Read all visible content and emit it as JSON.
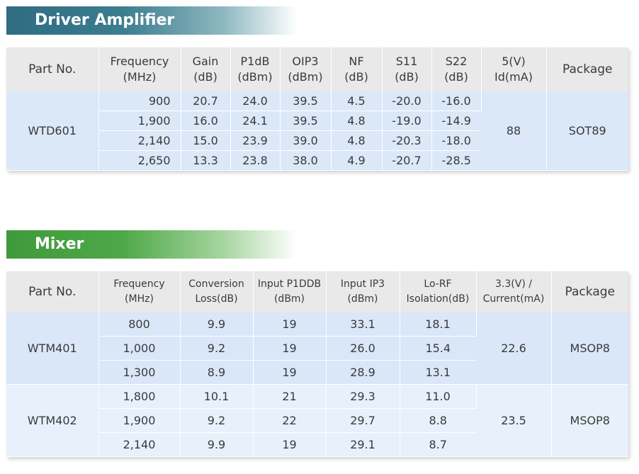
{
  "driver": {
    "title": "Driver Amplifier",
    "headers": [
      [
        "Part No."
      ],
      [
        "Frequency",
        "(MHz)"
      ],
      [
        "Gain",
        "(dB)"
      ],
      [
        "P1dB",
        "(dBm)"
      ],
      [
        "OIP3",
        "(dBm)"
      ],
      [
        "NF",
        "(dB)"
      ],
      [
        "S11",
        "(dB)"
      ],
      [
        "S22",
        "(dB)"
      ],
      [
        "5(V)",
        "Id(mA)"
      ],
      [
        "Package"
      ]
    ],
    "part": "WTD601",
    "id": "88",
    "package": "SOT89",
    "rows": [
      [
        "900",
        "20.7",
        "24.0",
        "39.5",
        "4.5",
        "-20.0",
        "-16.0"
      ],
      [
        "1,900",
        "16.0",
        "24.1",
        "39.5",
        "4.8",
        "-19.0",
        "-14.9"
      ],
      [
        "2,140",
        "15.0",
        "23.9",
        "39.0",
        "4.8",
        "-20.3",
        "-18.0"
      ],
      [
        "2,650",
        "13.3",
        "23.8",
        "38.0",
        "4.9",
        "-20.7",
        "-28.5"
      ]
    ]
  },
  "mixer": {
    "title": "Mixer",
    "headers": [
      [
        "Part No."
      ],
      [
        "Frequency",
        "(MHz)"
      ],
      [
        "Conversion",
        "Loss(dB)"
      ],
      [
        "Input P1DDB",
        "(dBm)"
      ],
      [
        "Input IP3",
        "(dBm)"
      ],
      [
        "Lo-RF",
        "Isolation(dB)"
      ],
      [
        "3.3(V) /",
        "Current(mA)"
      ],
      [
        "Package"
      ]
    ],
    "groups": [
      {
        "part": "WTM401",
        "current": "22.6",
        "package": "MSOP8",
        "rows": [
          [
            "800",
            "9.9",
            "19",
            "33.1",
            "18.1"
          ],
          [
            "1,000",
            "9.2",
            "19",
            "26.0",
            "15.4"
          ],
          [
            "1,300",
            "8.9",
            "19",
            "28.9",
            "13.1"
          ]
        ]
      },
      {
        "part": "WTM402",
        "current": "23.5",
        "package": "MSOP8",
        "rows": [
          [
            "1,800",
            "10.1",
            "21",
            "29.3",
            "11.0"
          ],
          [
            "1,900",
            "9.2",
            "22",
            "29.7",
            "8.8"
          ],
          [
            "2,140",
            "9.9",
            "19",
            "29.1",
            "8.7"
          ]
        ]
      }
    ]
  },
  "colors": {
    "driver_banner": "#2f6c82",
    "mixer_banner": "#3f9a3b",
    "header_bg": "#e9e9e9",
    "row_bg": "#dbe8f8"
  }
}
